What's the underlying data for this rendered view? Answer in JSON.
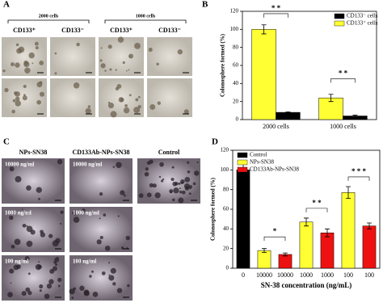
{
  "panel_a": {
    "letter": "A",
    "groups": [
      "2000 cells",
      "1000 cells"
    ],
    "columns": [
      "CD133⁺",
      "CD133⁻",
      "CD133⁺",
      "CD133⁻"
    ]
  },
  "panel_c": {
    "letter": "C",
    "columns": [
      "NPs-SN38",
      "CD133Ab-NPs-SN38",
      "Control"
    ],
    "rows": [
      "10000 ng/ml",
      "1000 ng/ml",
      "100 ng/ml"
    ]
  },
  "chart_data": [
    {
      "type": "bar",
      "letter": "B",
      "y_label": "Colonosphere formed (%)",
      "categories": [
        "2000 cells",
        "1000 cells"
      ],
      "series": [
        {
          "name": "CD133⁺ cells",
          "color": "#ffff33",
          "values": [
            100,
            24
          ],
          "errors": [
            5,
            4
          ]
        },
        {
          "name": "CD133⁻ cells",
          "color": "#000000",
          "values": [
            8,
            4
          ],
          "errors": [
            0.5,
            1
          ]
        }
      ],
      "ylim": [
        0,
        120
      ],
      "yticks": [
        0,
        20,
        40,
        60,
        80,
        100,
        120
      ],
      "annotations": [
        "* *",
        "* *"
      ],
      "legend": "top-right"
    },
    {
      "type": "bar",
      "letter": "D",
      "y_label": "Colonosphere formed (%)",
      "x_label": "SN-38 concentration (ng/mL)",
      "categories": [
        "0",
        "10000",
        "10000",
        "1000",
        "1000",
        "100",
        "100"
      ],
      "series": [
        {
          "name": "Control",
          "color": "#000000",
          "values": [
            100,
            null,
            null,
            null,
            null,
            null,
            null
          ],
          "errors": [
            6,
            null,
            null,
            null,
            null,
            null,
            null
          ]
        },
        {
          "name": "NPs-SN38",
          "color": "#ffff33",
          "values": [
            null,
            18,
            null,
            47,
            null,
            77,
            null
          ],
          "errors": [
            null,
            2,
            null,
            4,
            null,
            6,
            null
          ]
        },
        {
          "name": "CD133Ab-NPs-SN38",
          "color": "#ee1111",
          "values": [
            null,
            null,
            14,
            null,
            36,
            null,
            43
          ],
          "errors": [
            null,
            null,
            1.5,
            null,
            4,
            null,
            3
          ]
        }
      ],
      "ylim": [
        0,
        120
      ],
      "yticks": [
        0,
        20,
        40,
        60,
        80,
        100,
        120
      ],
      "annotations": [
        "*",
        "* *",
        "* * *"
      ],
      "legend": "top-left"
    }
  ]
}
